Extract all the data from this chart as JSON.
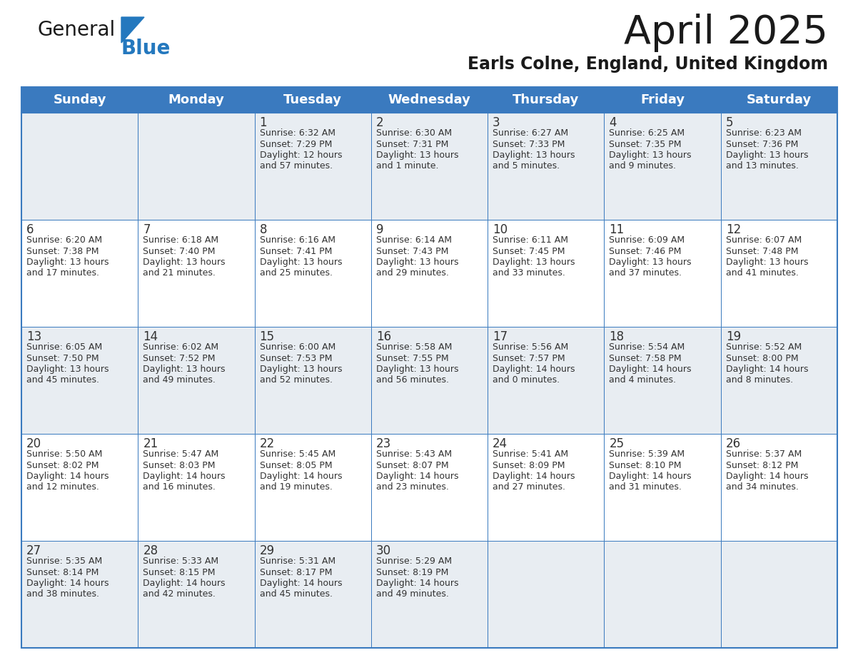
{
  "title": "April 2025",
  "subtitle": "Earls Colne, England, United Kingdom",
  "days_of_week": [
    "Sunday",
    "Monday",
    "Tuesday",
    "Wednesday",
    "Thursday",
    "Friday",
    "Saturday"
  ],
  "header_bg": "#3a7abf",
  "header_text": "#ffffff",
  "cell_bg_alt": "#e8edf2",
  "cell_bg_white": "#ffffff",
  "border_color": "#3a7abf",
  "text_color": "#333333",
  "title_color": "#1a1a1a",
  "logo_general_color": "#1a1a1a",
  "logo_blue_color": "#2478be",
  "weeks": [
    [
      {
        "day": null,
        "lines": null
      },
      {
        "day": null,
        "lines": null
      },
      {
        "day": "1",
        "lines": [
          "Sunrise: 6:32 AM",
          "Sunset: 7:29 PM",
          "Daylight: 12 hours",
          "and 57 minutes."
        ]
      },
      {
        "day": "2",
        "lines": [
          "Sunrise: 6:30 AM",
          "Sunset: 7:31 PM",
          "Daylight: 13 hours",
          "and 1 minute."
        ]
      },
      {
        "day": "3",
        "lines": [
          "Sunrise: 6:27 AM",
          "Sunset: 7:33 PM",
          "Daylight: 13 hours",
          "and 5 minutes."
        ]
      },
      {
        "day": "4",
        "lines": [
          "Sunrise: 6:25 AM",
          "Sunset: 7:35 PM",
          "Daylight: 13 hours",
          "and 9 minutes."
        ]
      },
      {
        "day": "5",
        "lines": [
          "Sunrise: 6:23 AM",
          "Sunset: 7:36 PM",
          "Daylight: 13 hours",
          "and 13 minutes."
        ]
      }
    ],
    [
      {
        "day": "6",
        "lines": [
          "Sunrise: 6:20 AM",
          "Sunset: 7:38 PM",
          "Daylight: 13 hours",
          "and 17 minutes."
        ]
      },
      {
        "day": "7",
        "lines": [
          "Sunrise: 6:18 AM",
          "Sunset: 7:40 PM",
          "Daylight: 13 hours",
          "and 21 minutes."
        ]
      },
      {
        "day": "8",
        "lines": [
          "Sunrise: 6:16 AM",
          "Sunset: 7:41 PM",
          "Daylight: 13 hours",
          "and 25 minutes."
        ]
      },
      {
        "day": "9",
        "lines": [
          "Sunrise: 6:14 AM",
          "Sunset: 7:43 PM",
          "Daylight: 13 hours",
          "and 29 minutes."
        ]
      },
      {
        "day": "10",
        "lines": [
          "Sunrise: 6:11 AM",
          "Sunset: 7:45 PM",
          "Daylight: 13 hours",
          "and 33 minutes."
        ]
      },
      {
        "day": "11",
        "lines": [
          "Sunrise: 6:09 AM",
          "Sunset: 7:46 PM",
          "Daylight: 13 hours",
          "and 37 minutes."
        ]
      },
      {
        "day": "12",
        "lines": [
          "Sunrise: 6:07 AM",
          "Sunset: 7:48 PM",
          "Daylight: 13 hours",
          "and 41 minutes."
        ]
      }
    ],
    [
      {
        "day": "13",
        "lines": [
          "Sunrise: 6:05 AM",
          "Sunset: 7:50 PM",
          "Daylight: 13 hours",
          "and 45 minutes."
        ]
      },
      {
        "day": "14",
        "lines": [
          "Sunrise: 6:02 AM",
          "Sunset: 7:52 PM",
          "Daylight: 13 hours",
          "and 49 minutes."
        ]
      },
      {
        "day": "15",
        "lines": [
          "Sunrise: 6:00 AM",
          "Sunset: 7:53 PM",
          "Daylight: 13 hours",
          "and 52 minutes."
        ]
      },
      {
        "day": "16",
        "lines": [
          "Sunrise: 5:58 AM",
          "Sunset: 7:55 PM",
          "Daylight: 13 hours",
          "and 56 minutes."
        ]
      },
      {
        "day": "17",
        "lines": [
          "Sunrise: 5:56 AM",
          "Sunset: 7:57 PM",
          "Daylight: 14 hours",
          "and 0 minutes."
        ]
      },
      {
        "day": "18",
        "lines": [
          "Sunrise: 5:54 AM",
          "Sunset: 7:58 PM",
          "Daylight: 14 hours",
          "and 4 minutes."
        ]
      },
      {
        "day": "19",
        "lines": [
          "Sunrise: 5:52 AM",
          "Sunset: 8:00 PM",
          "Daylight: 14 hours",
          "and 8 minutes."
        ]
      }
    ],
    [
      {
        "day": "20",
        "lines": [
          "Sunrise: 5:50 AM",
          "Sunset: 8:02 PM",
          "Daylight: 14 hours",
          "and 12 minutes."
        ]
      },
      {
        "day": "21",
        "lines": [
          "Sunrise: 5:47 AM",
          "Sunset: 8:03 PM",
          "Daylight: 14 hours",
          "and 16 minutes."
        ]
      },
      {
        "day": "22",
        "lines": [
          "Sunrise: 5:45 AM",
          "Sunset: 8:05 PM",
          "Daylight: 14 hours",
          "and 19 minutes."
        ]
      },
      {
        "day": "23",
        "lines": [
          "Sunrise: 5:43 AM",
          "Sunset: 8:07 PM",
          "Daylight: 14 hours",
          "and 23 minutes."
        ]
      },
      {
        "day": "24",
        "lines": [
          "Sunrise: 5:41 AM",
          "Sunset: 8:09 PM",
          "Daylight: 14 hours",
          "and 27 minutes."
        ]
      },
      {
        "day": "25",
        "lines": [
          "Sunrise: 5:39 AM",
          "Sunset: 8:10 PM",
          "Daylight: 14 hours",
          "and 31 minutes."
        ]
      },
      {
        "day": "26",
        "lines": [
          "Sunrise: 5:37 AM",
          "Sunset: 8:12 PM",
          "Daylight: 14 hours",
          "and 34 minutes."
        ]
      }
    ],
    [
      {
        "day": "27",
        "lines": [
          "Sunrise: 5:35 AM",
          "Sunset: 8:14 PM",
          "Daylight: 14 hours",
          "and 38 minutes."
        ]
      },
      {
        "day": "28",
        "lines": [
          "Sunrise: 5:33 AM",
          "Sunset: 8:15 PM",
          "Daylight: 14 hours",
          "and 42 minutes."
        ]
      },
      {
        "day": "29",
        "lines": [
          "Sunrise: 5:31 AM",
          "Sunset: 8:17 PM",
          "Daylight: 14 hours",
          "and 45 minutes."
        ]
      },
      {
        "day": "30",
        "lines": [
          "Sunrise: 5:29 AM",
          "Sunset: 8:19 PM",
          "Daylight: 14 hours",
          "and 49 minutes."
        ]
      },
      {
        "day": null,
        "lines": null
      },
      {
        "day": null,
        "lines": null
      },
      {
        "day": null,
        "lines": null
      }
    ]
  ]
}
